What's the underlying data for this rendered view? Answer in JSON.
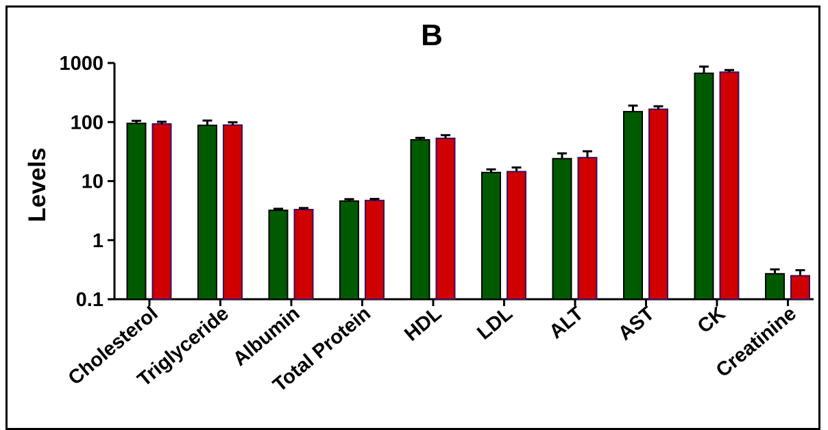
{
  "chart_data": {
    "type": "bar",
    "title": "B",
    "xlabel": "",
    "ylabel": "Levels",
    "yscale": "log",
    "ylim": [
      0.1,
      1000
    ],
    "yticks": [
      "0.1",
      "1",
      "10",
      "100",
      "1000"
    ],
    "categories": [
      "Cholesterol",
      "Triglyceride",
      "Albumin",
      "Total Protein",
      "HDL",
      "LDL",
      "ALT",
      "AST",
      "CK",
      "Creatinine"
    ],
    "series": [
      {
        "color": "#005a00",
        "values": [
          95,
          88,
          3.2,
          4.6,
          50,
          14,
          24,
          150,
          670,
          0.27
        ],
        "errors": [
          10,
          18,
          0.2,
          0.35,
          4,
          1.8,
          5.5,
          40,
          200,
          0.05
        ]
      },
      {
        "color": "#d00000",
        "values": [
          93,
          89,
          3.3,
          4.7,
          53,
          14.5,
          25,
          165,
          700,
          0.25
        ],
        "errors": [
          8,
          10,
          0.2,
          0.3,
          7,
          2.5,
          7,
          20,
          60,
          0.06
        ]
      }
    ],
    "grid": false,
    "legend": "none"
  }
}
